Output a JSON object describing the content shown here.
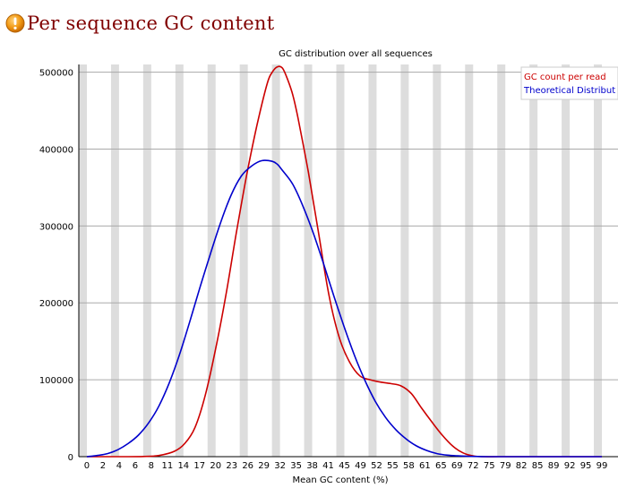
{
  "header": {
    "icon": "warning-icon",
    "title": "Per sequence GC content"
  },
  "chart_data": {
    "type": "line",
    "title": "GC distribution over all sequences",
    "xlabel": "Mean GC content (%)",
    "ylabel": "",
    "xlim": [
      0,
      100
    ],
    "ylim": [
      0,
      510000
    ],
    "x_tick_labels": [
      "0",
      "2",
      "4",
      "6",
      "8",
      "11",
      "14",
      "17",
      "20",
      "23",
      "26",
      "29",
      "32",
      "35",
      "38",
      "41",
      "45",
      "49",
      "52",
      "55",
      "58",
      "61",
      "65",
      "69",
      "72",
      "75",
      "79",
      "82",
      "85",
      "89",
      "92",
      "95",
      "99"
    ],
    "y_tick_labels": [
      "0",
      "100000",
      "200000",
      "300000",
      "400000",
      "500000"
    ],
    "y_ticks": [
      0,
      100000,
      200000,
      300000,
      400000,
      500000
    ],
    "grid": "horizontal lines with alternating grey and white vertical bands",
    "legend_position": "top-right",
    "series": [
      {
        "name": "GC count per read",
        "color": "#cc0000",
        "x": [
          0,
          8,
          11,
          14,
          17,
          19,
          21,
          23,
          25,
          27,
          29,
          31,
          33,
          35,
          36,
          37,
          38,
          39,
          40,
          41,
          43,
          45,
          47,
          49,
          51,
          53,
          55,
          57,
          59,
          61,
          63,
          65,
          67,
          69,
          71,
          73,
          75,
          77,
          80,
          85,
          90,
          95,
          100
        ],
        "y": [
          0,
          0,
          200,
          1500,
          7000,
          17000,
          38000,
          80000,
          140000,
          210000,
          290000,
          365000,
          430000,
          485000,
          500000,
          507000,
          505000,
          490000,
          470000,
          440000,
          370000,
          290000,
          210000,
          155000,
          123000,
          105000,
          100000,
          97000,
          95000,
          92000,
          82000,
          63000,
          45000,
          28000,
          14000,
          5000,
          1000,
          0,
          0,
          0,
          0,
          0,
          0
        ]
      },
      {
        "name": "Theoretical Distribut",
        "color": "#0000cc",
        "x": [
          0,
          2,
          4,
          6,
          8,
          10,
          12,
          14,
          16,
          18,
          20,
          22,
          24,
          26,
          28,
          30,
          32,
          34,
          36,
          37,
          38,
          40,
          42,
          44,
          46,
          48,
          50,
          52,
          54,
          56,
          58,
          60,
          62,
          64,
          66,
          68,
          70,
          72,
          74,
          76,
          78,
          80,
          85,
          90,
          95,
          100
        ],
        "y": [
          0,
          1500,
          4000,
          9000,
          17000,
          28000,
          44000,
          66000,
          96000,
          133000,
          176000,
          221000,
          264000,
          305000,
          340000,
          365000,
          378000,
          385000,
          384000,
          380000,
          372000,
          354000,
          325000,
          290000,
          250000,
          208000,
          168000,
          131000,
          99000,
          72000,
          51000,
          35000,
          23000,
          14000,
          8000,
          4000,
          2000,
          1000,
          500,
          200,
          0,
          0,
          0,
          0,
          0,
          0
        ]
      }
    ]
  }
}
